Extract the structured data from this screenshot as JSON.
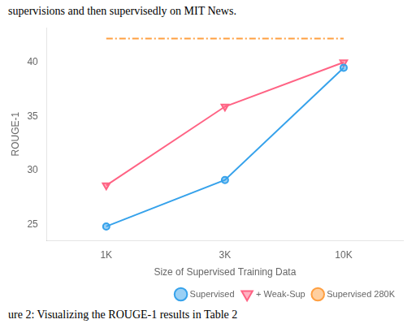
{
  "chart_data": {
    "type": "line",
    "annotations": [
      "supervisions and then supervisedly on MIT News.",
      "ure 2: Visualizing the ROUGE-1 results in Table 2"
    ],
    "xlabel": "Size of Supervised Training Data",
    "ylabel": "ROUGE-1",
    "categories": [
      "1K",
      "3K",
      "10K"
    ],
    "series": [
      {
        "name": "Supervised",
        "values": [
          24.8,
          29.1,
          39.5
        ],
        "marker": "circle",
        "line_style": "solid"
      },
      {
        "name": "+ Weak-Sup",
        "values": [
          28.6,
          35.9,
          40.0
        ],
        "marker": "triangle_down",
        "line_style": "solid"
      },
      {
        "name": "Supervised 280K",
        "values": [
          42.2,
          42.2,
          42.2
        ],
        "marker": "none",
        "line_style": "dashdot"
      }
    ],
    "ylim": [
      23.5,
      43.2
    ],
    "yticks": [
      25,
      30,
      35,
      40
    ],
    "grid": false,
    "legend": "lower right"
  }
}
